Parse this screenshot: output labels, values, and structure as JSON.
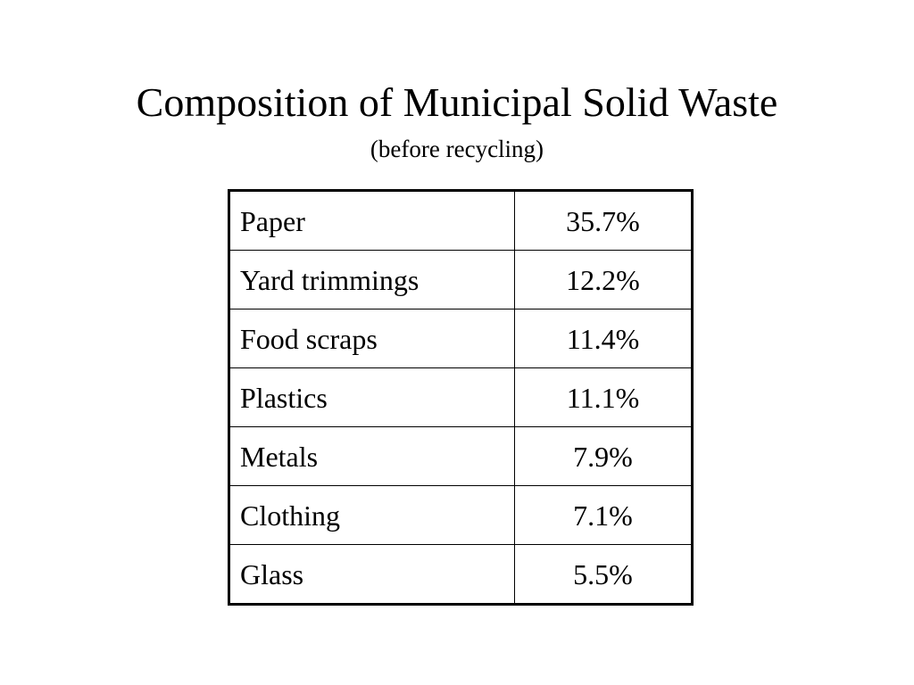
{
  "slide": {
    "title": "Composition of Municipal Solid Waste",
    "subtitle": "(before recycling)"
  },
  "table": {
    "rows": [
      {
        "category": "Paper",
        "value": "35.7%"
      },
      {
        "category": "Yard trimmings",
        "value": "12.2%"
      },
      {
        "category": "Food scraps",
        "value": "11.4%"
      },
      {
        "category": "Plastics",
        "value": "11.1%"
      },
      {
        "category": "Metals",
        "value": "7.9%"
      },
      {
        "category": "Clothing",
        "value": "7.1%"
      },
      {
        "category": "Glass",
        "value": "5.5%"
      }
    ]
  }
}
